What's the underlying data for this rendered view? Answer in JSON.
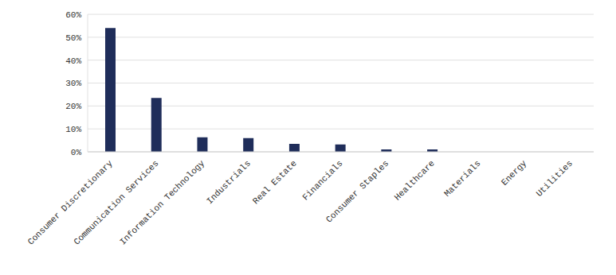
{
  "chart_data": {
    "type": "bar",
    "categories": [
      "Consumer Discretionary",
      "Communication Services",
      "Information Technology",
      "Industrials",
      "Real Estate",
      "Financials",
      "Consumer Staples",
      "Healthcare",
      "Materials",
      "Energy",
      "Utilities"
    ],
    "values": [
      54,
      23.5,
      6.3,
      6,
      3.5,
      3.2,
      1,
      1,
      0,
      0,
      0
    ],
    "color": "#1f2d5a",
    "ylim": [
      0,
      60
    ],
    "yticks": [
      {
        "value": 0,
        "label": "0%"
      },
      {
        "value": 10,
        "label": "10%"
      },
      {
        "value": 20,
        "label": "20%"
      },
      {
        "value": 30,
        "label": "30%"
      },
      {
        "value": 40,
        "label": "40%"
      },
      {
        "value": 50,
        "label": "50%"
      },
      {
        "value": 60,
        "label": "60%"
      }
    ],
    "grid": true
  }
}
